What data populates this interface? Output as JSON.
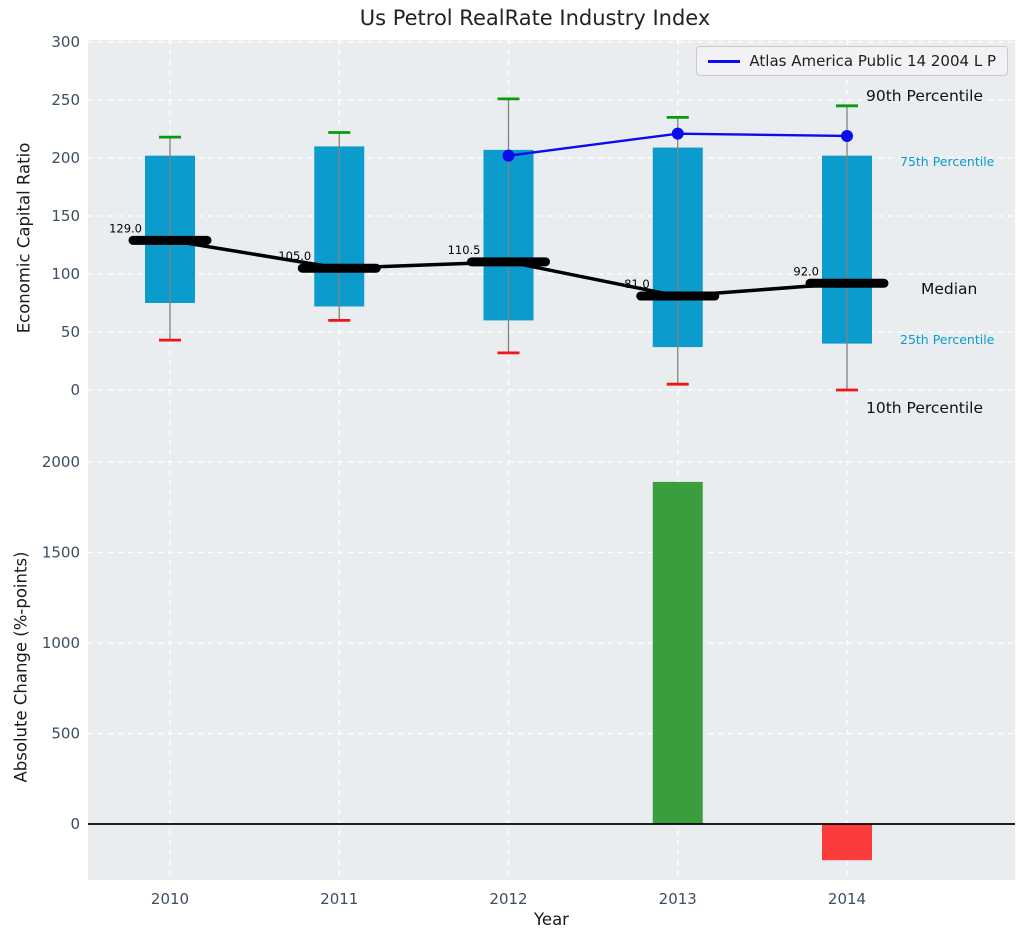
{
  "figure": {
    "title": "Us Petrol RealRate Industry Index"
  },
  "axes": {
    "top": {
      "ylabel": "Economic Capital Ratio",
      "yticks": [
        0,
        50,
        100,
        150,
        200,
        250,
        300
      ]
    },
    "bottom": {
      "ylabel": "Absolute Change (%-points)",
      "yticks": [
        0,
        500,
        1000,
        1500,
        2000
      ],
      "xlabel": "Year"
    }
  },
  "legend": {
    "series_label": "Atlas America Public 14 2004 L P"
  },
  "annotations": {
    "p90": "90th Percentile",
    "p75": "75th Percentile",
    "median": "Median",
    "p25": "25th Percentile",
    "p10": "10th Percentile"
  },
  "chart_data": [
    {
      "type": "box-percentile-line",
      "title": "Us Petrol RealRate Industry Index",
      "xlabel": "Year",
      "ylabel": "Economic Capital Ratio",
      "categories": [
        "2010",
        "2011",
        "2012",
        "2013",
        "2014"
      ],
      "ylim": [
        -60,
        302
      ],
      "grid": true,
      "legend_position": "upper right",
      "series": [
        {
          "name": "10th Percentile",
          "values": [
            43,
            60,
            32,
            5,
            0
          ]
        },
        {
          "name": "25th Percentile",
          "values": [
            75,
            72,
            60,
            37,
            40
          ]
        },
        {
          "name": "Median",
          "values": [
            129,
            105,
            110.5,
            81,
            92
          ]
        },
        {
          "name": "75th Percentile",
          "values": [
            202,
            210,
            207,
            209,
            202
          ]
        },
        {
          "name": "90th Percentile",
          "values": [
            218,
            222,
            251,
            235,
            245
          ]
        },
        {
          "name": "Atlas America Public 14 2004 L P",
          "x": [
            "2012",
            "2013",
            "2014"
          ],
          "values": [
            202,
            221,
            219
          ]
        }
      ],
      "median_labels": [
        "129.0",
        "105.0",
        "110.5",
        "81.0",
        "92.0"
      ]
    },
    {
      "type": "bar",
      "categories": [
        "2010",
        "2011",
        "2012",
        "2013",
        "2014"
      ],
      "values": [
        null,
        null,
        null,
        1890,
        -200
      ],
      "xlabel": "Year",
      "ylabel": "Absolute Change (%-points)",
      "ylim": [
        -310,
        2030
      ],
      "grid": true
    }
  ],
  "colors": {
    "box_fill": "#0c9bcd",
    "median": "#000000",
    "company_line": "#0b0bee",
    "cap_top": "#0a9b0a",
    "cap_bottom": "#f01414",
    "bar_positive": "#3a9e3f",
    "bar_negative": "#fa3c3c",
    "plot_bg": "#e9edef",
    "grid": "#ffffff",
    "tick_text": "#3d4e63",
    "annotation_cyan": "#0d9bce",
    "whisker": "#828282"
  }
}
